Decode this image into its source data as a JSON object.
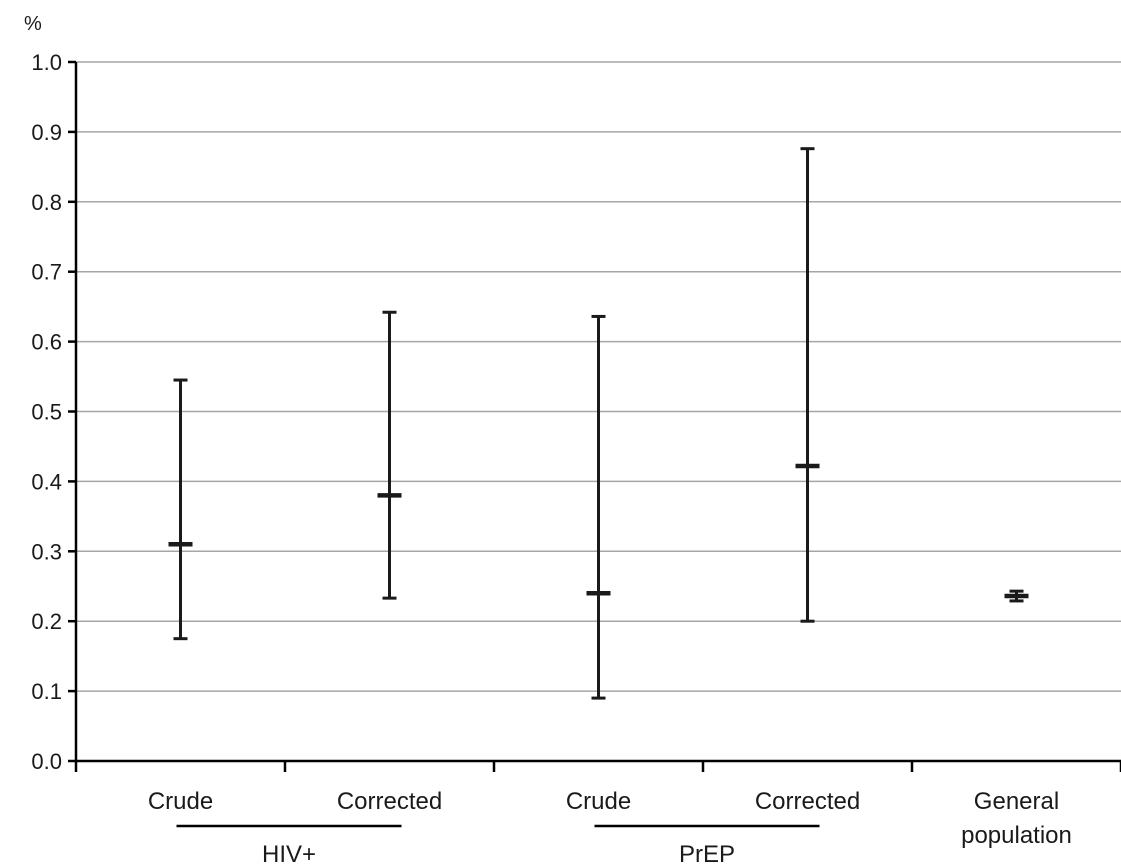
{
  "chart_data": {
    "type": "errorbar",
    "y_unit_label": "%",
    "ylim": [
      0.0,
      1.0
    ],
    "y_ticks": [
      "0.0",
      "0.1",
      "0.2",
      "0.3",
      "0.4",
      "0.5",
      "0.6",
      "0.7",
      "0.8",
      "0.9",
      "1.0"
    ],
    "grid": true,
    "categories": [
      "Crude",
      "Corrected",
      "Crude",
      "Corrected",
      "General population"
    ],
    "points": [
      {
        "category": "Crude",
        "group": "HIV+",
        "value": 0.31,
        "low": 0.175,
        "high": 0.545
      },
      {
        "category": "Corrected",
        "group": "HIV+",
        "value": 0.38,
        "low": 0.233,
        "high": 0.642
      },
      {
        "category": "Crude",
        "group": "PrEP",
        "value": 0.24,
        "low": 0.09,
        "high": 0.636
      },
      {
        "category": "Corrected",
        "group": "PrEP",
        "value": 0.422,
        "low": 0.2,
        "high": 0.876
      },
      {
        "category": "General population",
        "group": "",
        "value": 0.236,
        "low": 0.229,
        "high": 0.243
      }
    ],
    "groups": [
      {
        "label": "HIV+",
        "from": 0,
        "to": 1
      },
      {
        "label": "PrEP",
        "from": 2,
        "to": 3
      }
    ],
    "colors": {
      "marks": "#1a1a1a",
      "grid": "#a6a6a6",
      "axis": "#000000"
    }
  }
}
